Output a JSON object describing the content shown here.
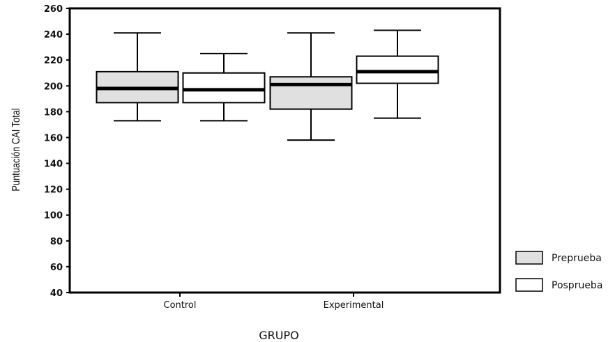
{
  "chart_data": {
    "type": "boxplot",
    "title": "",
    "xlabel": "GRUPO",
    "ylabel": "Puntuación CAI Total",
    "ylim": [
      40,
      260
    ],
    "yticks": [
      40,
      60,
      80,
      100,
      120,
      140,
      160,
      180,
      200,
      220,
      240,
      260
    ],
    "categories": [
      "Control",
      "Experimental"
    ],
    "legend_position": "bottom-right",
    "series": [
      {
        "name": "Preprueba",
        "color": "#e0e0e0",
        "boxes": [
          {
            "category": "Control",
            "min": 173,
            "q1": 187,
            "median": 198,
            "q3": 211,
            "max": 241
          },
          {
            "category": "Experimental",
            "min": 158,
            "q1": 182,
            "median": 201,
            "q3": 207,
            "max": 241
          }
        ]
      },
      {
        "name": "Posprueba",
        "color": "#ffffff",
        "boxes": [
          {
            "category": "Control",
            "min": 173,
            "q1": 187,
            "median": 197,
            "q3": 210,
            "max": 225
          },
          {
            "category": "Experimental",
            "min": 175,
            "q1": 202,
            "median": 211,
            "q3": 223,
            "max": 243
          }
        ]
      }
    ]
  }
}
